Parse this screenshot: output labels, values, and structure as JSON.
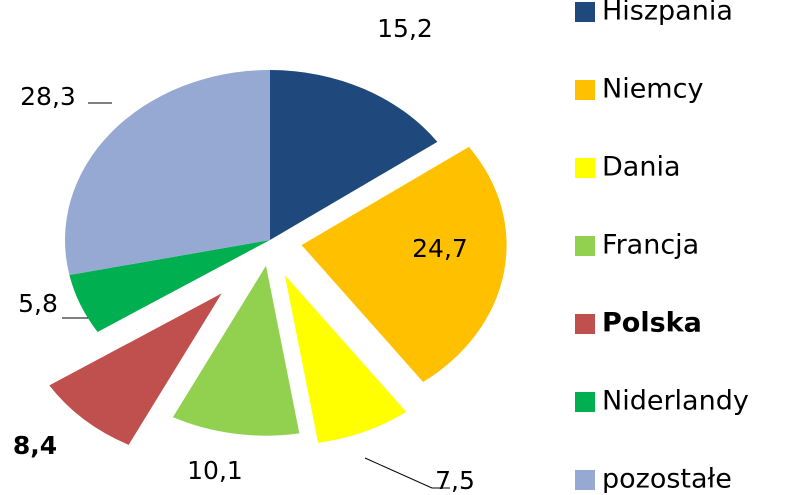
{
  "chart_data": {
    "type": "pie",
    "categories": [
      "Hiszpania",
      "Niemcy",
      "Dania",
      "Francja",
      "Polska",
      "Niderlandy",
      "pozostałe"
    ],
    "values": [
      15.2,
      24.7,
      7.5,
      10.1,
      8.4,
      5.8,
      28.3
    ],
    "value_labels": [
      "15,2",
      "24,7",
      "7,5",
      "10,1",
      "8,4",
      "5,8",
      "28,3"
    ],
    "colors": [
      "#1f497d",
      "#ffc000",
      "#ffff00",
      "#92d050",
      "#c0504d",
      "#00b050",
      "#95a9d3"
    ],
    "legend": "right"
  }
}
